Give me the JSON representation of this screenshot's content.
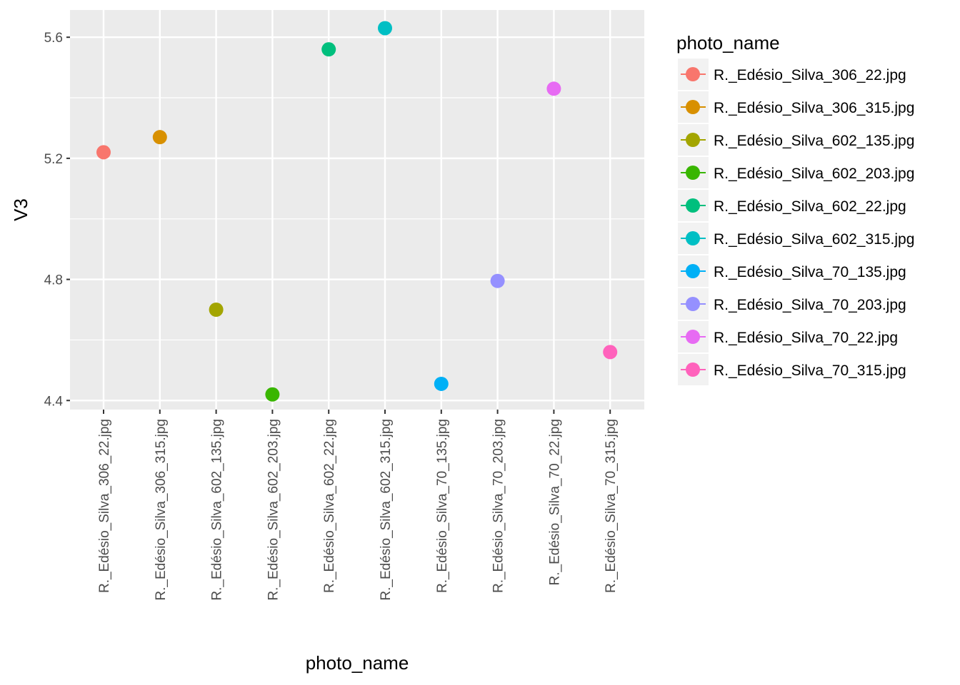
{
  "chart_data": {
    "type": "scatter",
    "xlabel": "photo_name",
    "ylabel": "V3",
    "ylim": [
      4.37,
      5.69
    ],
    "yticks": [
      4.4,
      4.8,
      5.2,
      5.6
    ],
    "ytick_labels": [
      "4.4",
      "4.8",
      "5.2",
      "5.6"
    ],
    "grid": true,
    "legend_title": "photo_name",
    "legend_position": "right",
    "categories": [
      "R._Edésio_Silva_306_22.jpg",
      "R._Edésio_Silva_306_315.jpg",
      "R._Edésio_Silva_602_135.jpg",
      "R._Edésio_Silva_602_203.jpg",
      "R._Edésio_Silva_602_22.jpg",
      "R._Edésio_Silva_602_315.jpg",
      "R._Edésio_Silva_70_135.jpg",
      "R._Edésio_Silva_70_203.jpg",
      "R._Edésio_Silva_70_22.jpg",
      "R._Edésio_Silva_70_315.jpg"
    ],
    "values": [
      5.22,
      5.27,
      4.7,
      4.42,
      5.56,
      5.63,
      4.455,
      4.795,
      5.43,
      4.56
    ],
    "colors": [
      "#F8766D",
      "#D89000",
      "#A3A500",
      "#39B600",
      "#00BF7D",
      "#00BFC4",
      "#00B0F6",
      "#9590FF",
      "#E76BF3",
      "#FF62BC"
    ]
  }
}
